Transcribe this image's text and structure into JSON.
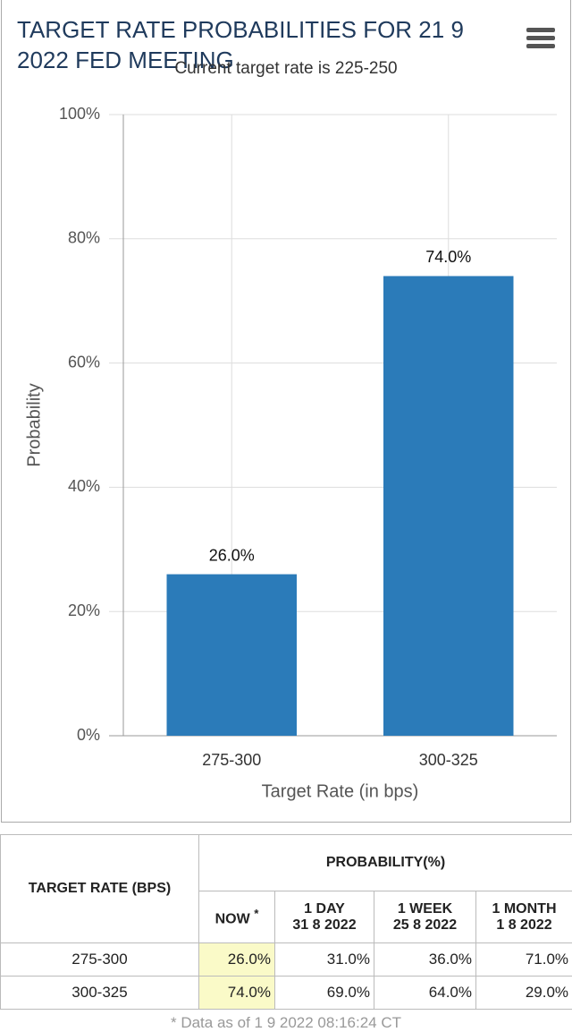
{
  "chart_data": {
    "type": "bar",
    "title": "TARGET RATE PROBABILITIES FOR 21 9 2022 FED MEETING",
    "subtitle": "Current target rate is 225-250",
    "categories": [
      "275-300",
      "300-325"
    ],
    "values": [
      26,
      74
    ],
    "value_labels": [
      "26.0%",
      "74.0%"
    ],
    "color": "#2b7bb9",
    "x_label": "Target Rate (in bps)",
    "y_label": "Probability",
    "ylim": [
      0,
      100
    ],
    "yticks": [
      {
        "value": 0,
        "label": "0%"
      },
      {
        "value": 20,
        "label": "20%"
      },
      {
        "value": 40,
        "label": "40%"
      },
      {
        "value": 60,
        "label": "60%"
      },
      {
        "value": 80,
        "label": "80%"
      },
      {
        "value": 100,
        "label": "100%"
      }
    ],
    "grid": true
  },
  "table": {
    "row_header": "TARGET RATE (BPS)",
    "group_header": "PROBABILITY(%)",
    "columns": [
      {
        "label": "NOW",
        "note": "*"
      },
      {
        "label": "1 DAY",
        "date": "31 8 2022"
      },
      {
        "label": "1 WEEK",
        "date": "25 8 2022"
      },
      {
        "label": "1 MONTH",
        "date": "1 8 2022"
      }
    ],
    "rows": [
      [
        "275-300",
        "26.0%",
        "31.0%",
        "36.0%",
        "71.0%"
      ],
      [
        "300-325",
        "74.0%",
        "69.0%",
        "64.0%",
        "29.0%"
      ]
    ],
    "footnote": "* Data as of 1 9 2022 08:16:24 CT"
  }
}
